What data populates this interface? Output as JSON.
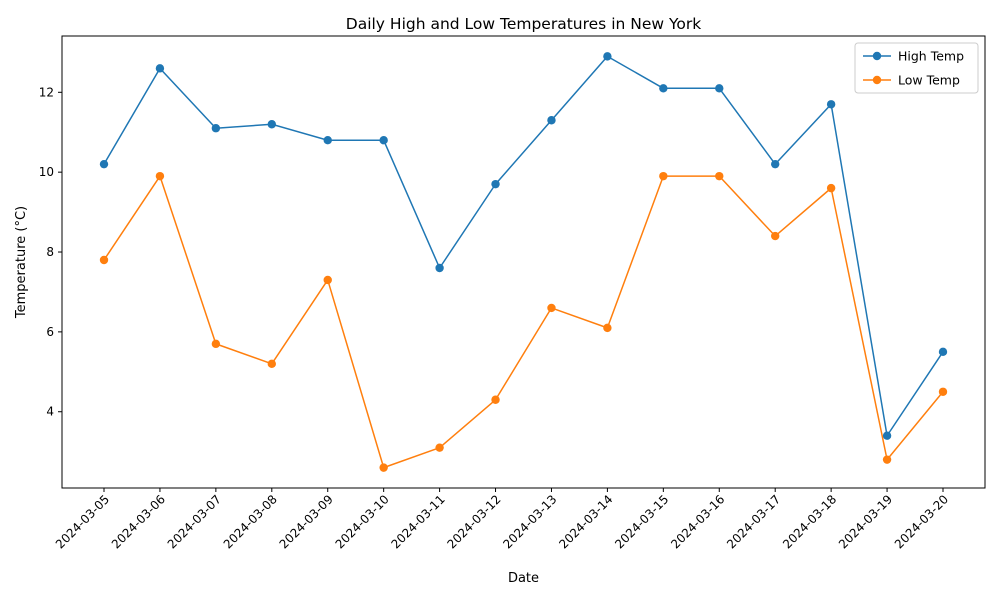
{
  "chart_data": {
    "type": "line",
    "title": "Daily High and Low Temperatures in New York",
    "xlabel": "Date",
    "ylabel": "Temperature (°C)",
    "categories": [
      "2024-03-05",
      "2024-03-06",
      "2024-03-07",
      "2024-03-08",
      "2024-03-09",
      "2024-03-10",
      "2024-03-11",
      "2024-03-12",
      "2024-03-13",
      "2024-03-14",
      "2024-03-15",
      "2024-03-16",
      "2024-03-17",
      "2024-03-18",
      "2024-03-19",
      "2024-03-20"
    ],
    "series": [
      {
        "name": "High Temp",
        "color": "#1f77b4",
        "values": [
          10.2,
          12.6,
          11.1,
          11.2,
          10.8,
          10.8,
          7.6,
          9.7,
          11.3,
          12.9,
          12.1,
          12.1,
          10.2,
          11.7,
          3.4,
          5.5
        ]
      },
      {
        "name": "Low Temp",
        "color": "#ff7f0e",
        "values": [
          7.8,
          9.9,
          5.7,
          5.2,
          7.3,
          2.6,
          3.1,
          4.3,
          6.6,
          6.1,
          9.9,
          9.9,
          8.4,
          9.6,
          2.8,
          4.5
        ]
      }
    ],
    "ylim": [
      2.09,
      13.41
    ],
    "yticks": [
      4,
      6,
      8,
      10,
      12
    ],
    "grid": false,
    "legend": "top-right",
    "marker": "circle"
  }
}
